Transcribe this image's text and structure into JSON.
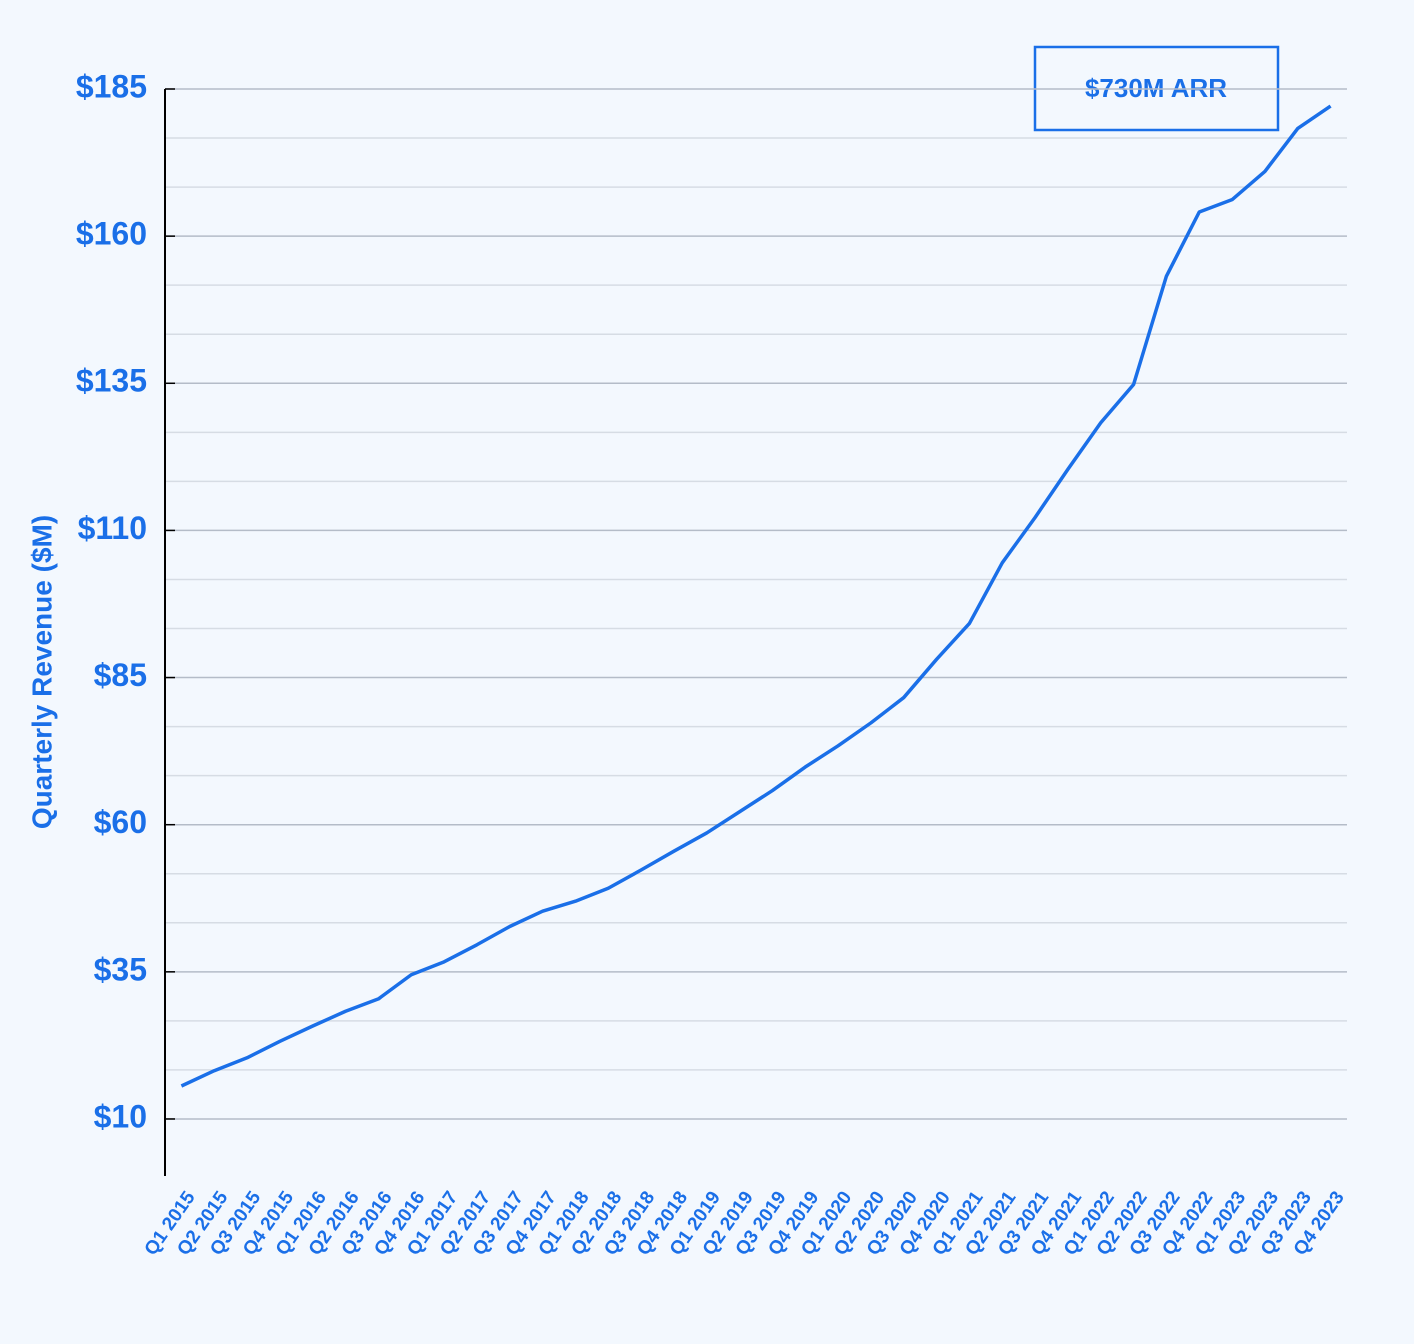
{
  "chart_data": {
    "type": "line",
    "y_label": "Quarterly Revenue ($M)",
    "annotation": "$730M ARR",
    "categories": [
      "Q1 2015",
      "Q2 2015",
      "Q3 2015",
      "Q4 2015",
      "Q1 2016",
      "Q2 2016",
      "Q3 2016",
      "Q4 2016",
      "Q1 2017",
      "Q2 2017",
      "Q3 2017",
      "Q4 2017",
      "Q1 2018",
      "Q2 2018",
      "Q3 2018",
      "Q4 2018",
      "Q1 2019",
      "Q2 2019",
      "Q3 2019",
      "Q4 2019",
      "Q1 2020",
      "Q2 2020",
      "Q3 2020",
      "Q4 2020",
      "Q1 2021",
      "Q2 2021",
      "Q3 2021",
      "Q4 2021",
      "Q1 2022",
      "Q2 2022",
      "Q3 2022",
      "Q4 2022",
      "Q1 2023",
      "Q2 2023",
      "Q3 2023",
      "Q4 2023"
    ],
    "values": [
      15.6,
      18.2,
      20.4,
      23.2,
      25.8,
      28.3,
      30.4,
      34.5,
      36.7,
      39.6,
      42.7,
      45.3,
      47.0,
      49.2,
      52.3,
      55.5,
      58.6,
      62.2,
      65.8,
      69.8,
      73.4,
      77.3,
      81.6,
      88.1,
      94.2,
      104.5,
      112.2,
      120.4,
      128.3,
      134.8,
      153.2,
      164.1,
      166.2,
      171.0,
      178.3,
      182.1
    ],
    "color": "#1a6fe8",
    "ylim": [
      1.67,
      185
    ],
    "yticks": [
      {
        "value": 10,
        "label": "$10"
      },
      {
        "value": 35,
        "label": "$35"
      },
      {
        "value": 60,
        "label": "$60"
      },
      {
        "value": 85,
        "label": "$85"
      },
      {
        "value": 110,
        "label": "$110"
      },
      {
        "value": 135,
        "label": "$135"
      },
      {
        "value": 160,
        "label": "$160"
      },
      {
        "value": 185,
        "label": "$185"
      }
    ],
    "grid": true,
    "minor_grid_divisions": 3
  }
}
